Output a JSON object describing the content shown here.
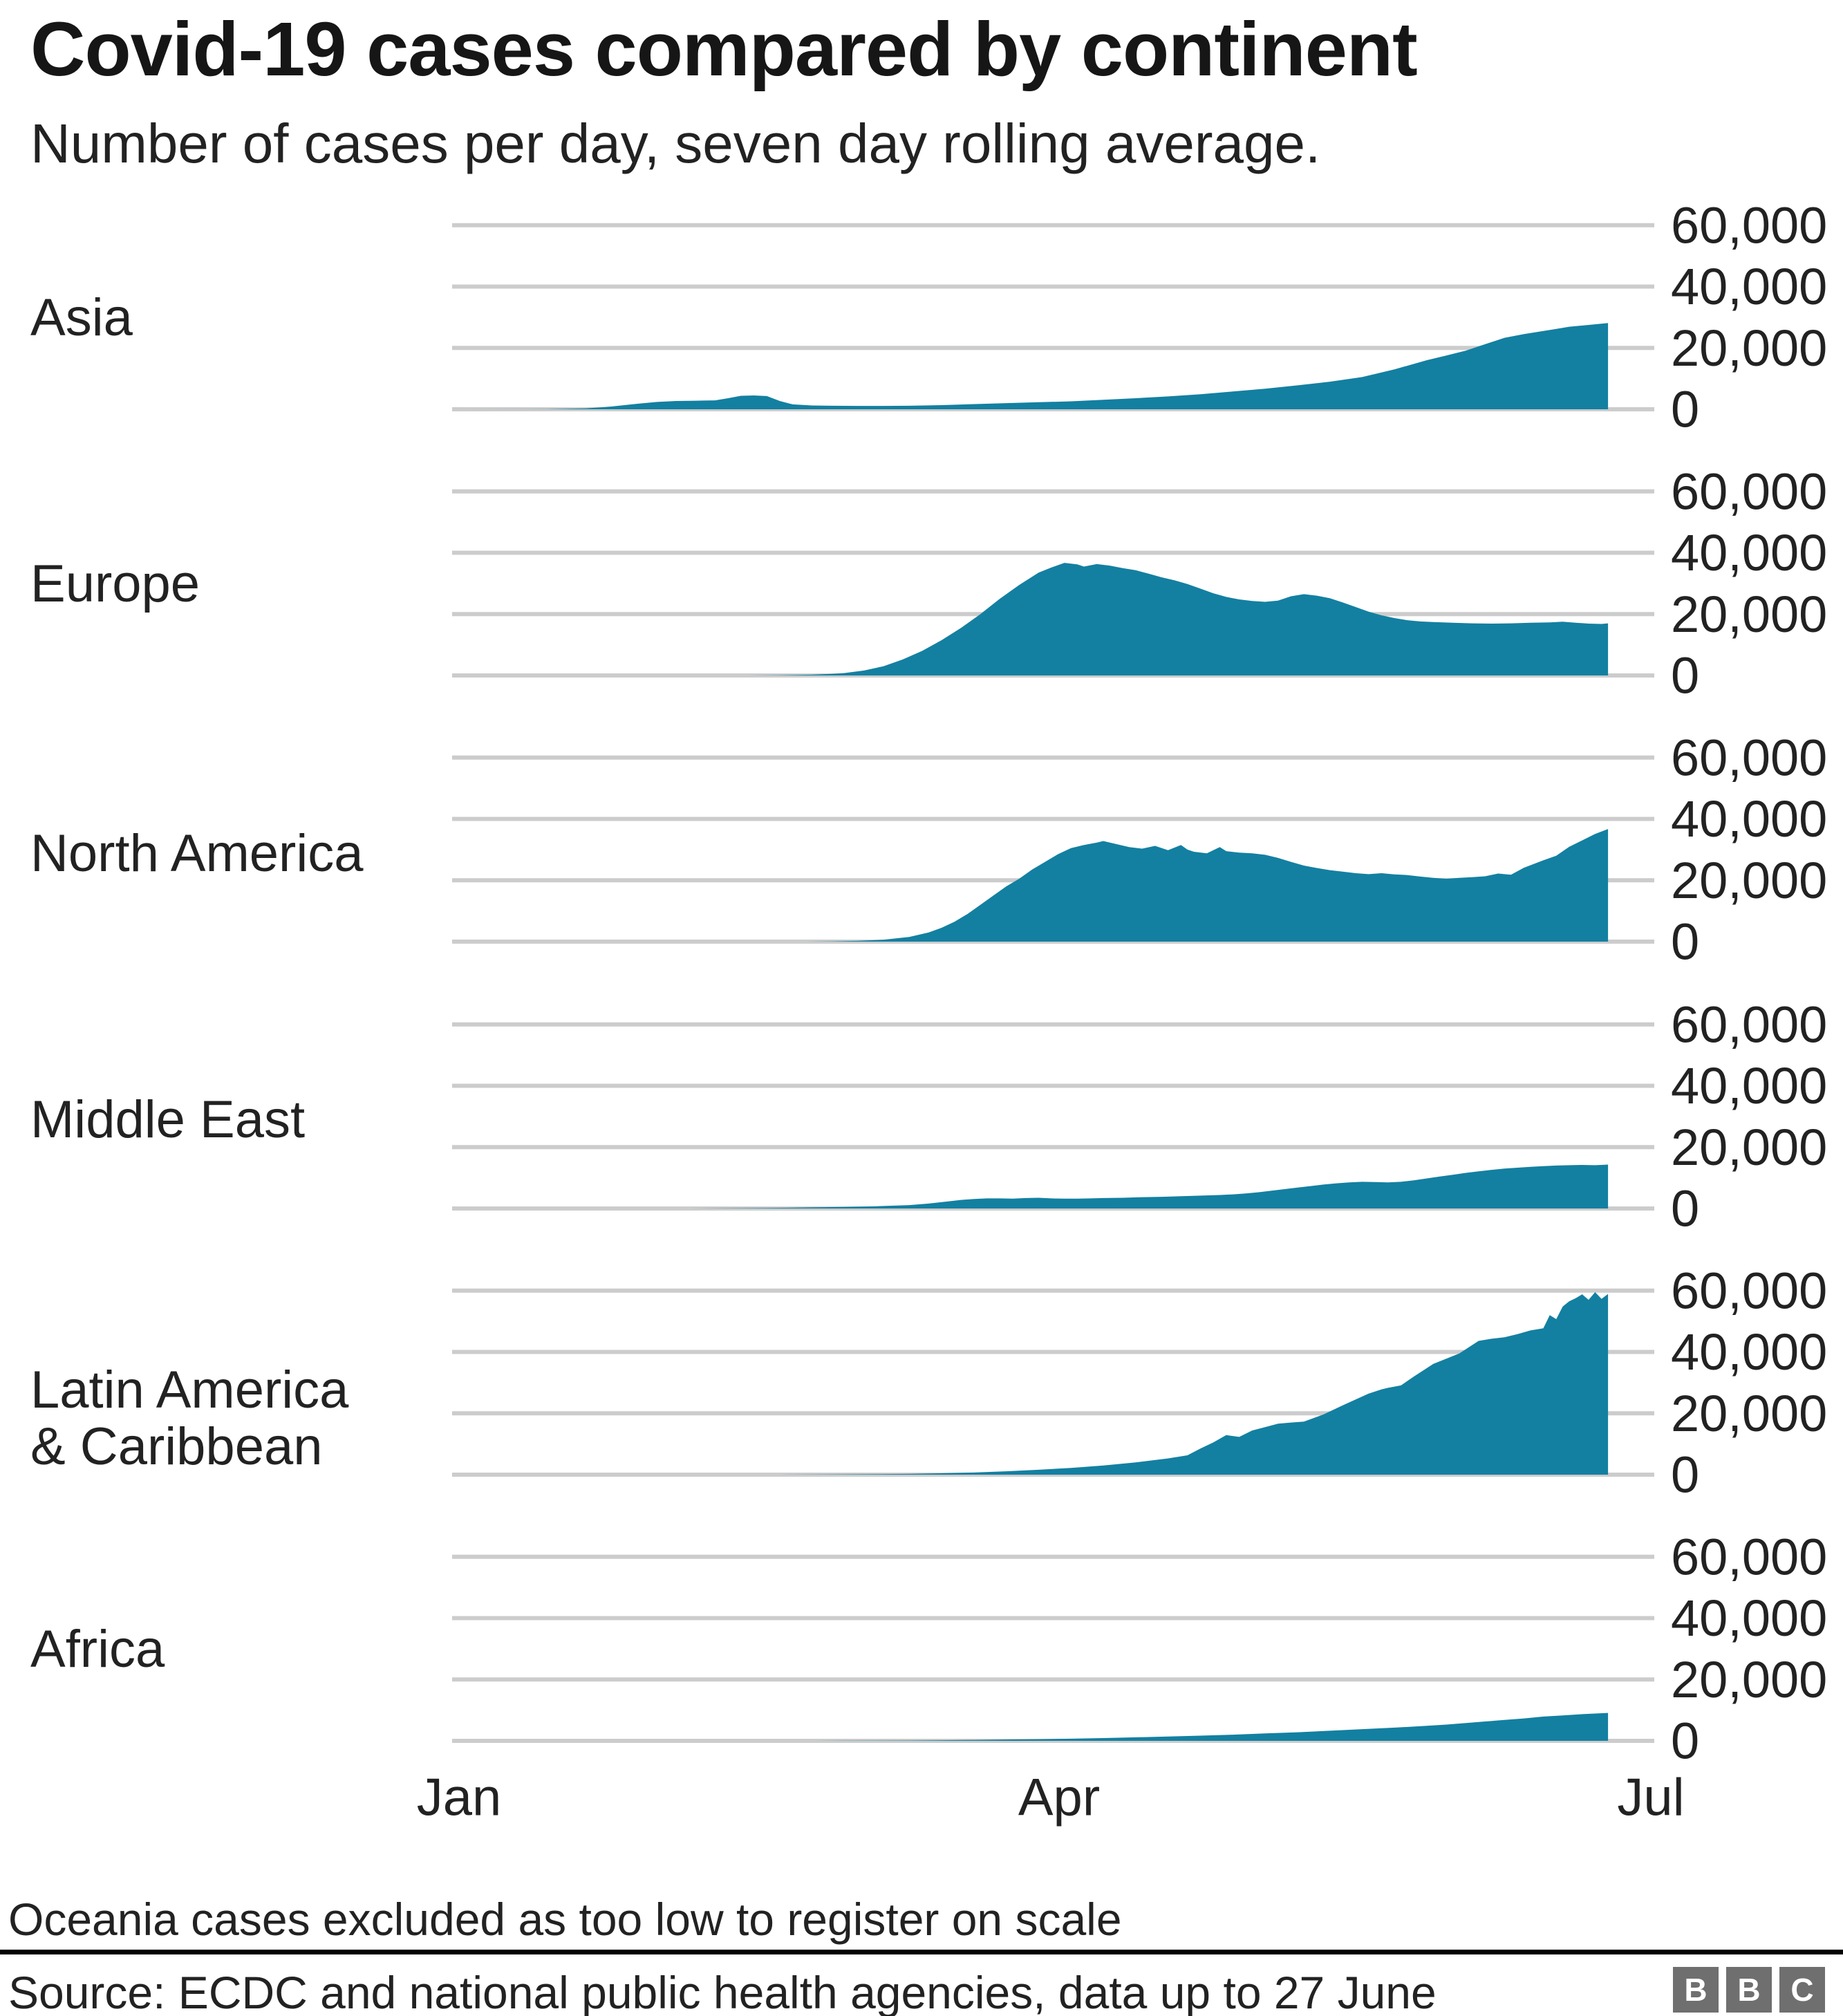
{
  "header": {
    "title": "Covid-19 cases compared by continent",
    "subtitle": "Number of cases per day, seven day rolling average."
  },
  "chart_data": {
    "type": "area",
    "title": "Covid-19 cases compared by continent",
    "subtitle": "Number of cases per day, seven day rolling average.",
    "accent_color": "#1380A1",
    "grid_color": "#CCCCCC",
    "legend_position": "left-row-labels",
    "x_axis": {
      "tick_labels": [
        "Jan",
        "Apr",
        "Jul"
      ],
      "note": "days since 1 Jan, data to 27 June"
    },
    "y_axis": {
      "tick_values": [
        0,
        20000,
        40000,
        60000
      ],
      "tick_labels": [
        "0",
        "20,000",
        "40,000",
        "60,000"
      ],
      "ylim": [
        0,
        60000
      ],
      "grid": true
    },
    "series": [
      {
        "name": "Asia",
        "label": "Asia",
        "points": [
          [
            0,
            0
          ],
          [
            14,
            50
          ],
          [
            20,
            300
          ],
          [
            24,
            900
          ],
          [
            28,
            1800
          ],
          [
            31,
            2400
          ],
          [
            34,
            2700
          ],
          [
            37,
            2800
          ],
          [
            40,
            2900
          ],
          [
            42,
            3600
          ],
          [
            44,
            4400
          ],
          [
            46,
            4500
          ],
          [
            48,
            4300
          ],
          [
            50,
            2700
          ],
          [
            52,
            1600
          ],
          [
            55,
            1250
          ],
          [
            58,
            1150
          ],
          [
            62,
            1100
          ],
          [
            66,
            1100
          ],
          [
            70,
            1150
          ],
          [
            75,
            1350
          ],
          [
            80,
            1700
          ],
          [
            85,
            2000
          ],
          [
            90,
            2300
          ],
          [
            95,
            2600
          ],
          [
            100,
            3100
          ],
          [
            105,
            3600
          ],
          [
            110,
            4200
          ],
          [
            115,
            4900
          ],
          [
            120,
            5800
          ],
          [
            125,
            6700
          ],
          [
            130,
            7800
          ],
          [
            135,
            9000
          ],
          [
            140,
            10500
          ],
          [
            145,
            13000
          ],
          [
            150,
            16000
          ],
          [
            153,
            17500
          ],
          [
            156,
            19100
          ],
          [
            159,
            21200
          ],
          [
            162,
            23300
          ],
          [
            165,
            24500
          ],
          [
            168,
            25500
          ],
          [
            170,
            26200
          ],
          [
            172,
            26900
          ],
          [
            175,
            27500
          ],
          [
            178,
            28100
          ]
        ]
      },
      {
        "name": "Europe",
        "label": "Europe",
        "points": [
          [
            0,
            0
          ],
          [
            45,
            0
          ],
          [
            50,
            100
          ],
          [
            55,
            250
          ],
          [
            58,
            500
          ],
          [
            60,
            800
          ],
          [
            63,
            1600
          ],
          [
            66,
            3000
          ],
          [
            69,
            5200
          ],
          [
            72,
            8000
          ],
          [
            75,
            11500
          ],
          [
            78,
            15500
          ],
          [
            81,
            20000
          ],
          [
            84,
            25000
          ],
          [
            87,
            29500
          ],
          [
            90,
            33500
          ],
          [
            92,
            35200
          ],
          [
            94,
            36700
          ],
          [
            96,
            36200
          ],
          [
            97,
            35500
          ],
          [
            99,
            36300
          ],
          [
            101,
            35800
          ],
          [
            103,
            35000
          ],
          [
            105,
            34300
          ],
          [
            107,
            33200
          ],
          [
            109,
            32000
          ],
          [
            111,
            31000
          ],
          [
            113,
            29800
          ],
          [
            115,
            28300
          ],
          [
            117,
            26800
          ],
          [
            119,
            25600
          ],
          [
            121,
            24800
          ],
          [
            123,
            24300
          ],
          [
            125,
            24000
          ],
          [
            127,
            24400
          ],
          [
            129,
            25800
          ],
          [
            131,
            26500
          ],
          [
            133,
            26000
          ],
          [
            135,
            25200
          ],
          [
            137,
            23800
          ],
          [
            139,
            22300
          ],
          [
            141,
            20800
          ],
          [
            143,
            19600
          ],
          [
            145,
            18700
          ],
          [
            147,
            18000
          ],
          [
            149,
            17600
          ],
          [
            151,
            17400
          ],
          [
            154,
            17200
          ],
          [
            157,
            17000
          ],
          [
            160,
            16900
          ],
          [
            163,
            17000
          ],
          [
            166,
            17200
          ],
          [
            169,
            17300
          ],
          [
            171,
            17500
          ],
          [
            173,
            17200
          ],
          [
            175,
            16900
          ],
          [
            177,
            16800
          ],
          [
            178,
            17000
          ]
        ]
      },
      {
        "name": "North America",
        "label": "North America",
        "points": [
          [
            0,
            0
          ],
          [
            54,
            0
          ],
          [
            58,
            100
          ],
          [
            62,
            250
          ],
          [
            66,
            600
          ],
          [
            70,
            1500
          ],
          [
            73,
            3000
          ],
          [
            75,
            4500
          ],
          [
            77,
            6500
          ],
          [
            79,
            9000
          ],
          [
            81,
            12000
          ],
          [
            83,
            15000
          ],
          [
            85,
            18000
          ],
          [
            87,
            20500
          ],
          [
            89,
            23500
          ],
          [
            91,
            26000
          ],
          [
            93,
            28500
          ],
          [
            95,
            30500
          ],
          [
            97,
            31500
          ],
          [
            99,
            32300
          ],
          [
            100,
            32800
          ],
          [
            102,
            31800
          ],
          [
            104,
            30800
          ],
          [
            106,
            30300
          ],
          [
            108,
            31200
          ],
          [
            110,
            29800
          ],
          [
            112,
            31500
          ],
          [
            113,
            30000
          ],
          [
            114,
            29300
          ],
          [
            116,
            28800
          ],
          [
            118,
            30800
          ],
          [
            119,
            29500
          ],
          [
            121,
            29000
          ],
          [
            123,
            28800
          ],
          [
            125,
            28300
          ],
          [
            127,
            27300
          ],
          [
            129,
            26000
          ],
          [
            131,
            24800
          ],
          [
            133,
            24000
          ],
          [
            135,
            23300
          ],
          [
            137,
            22800
          ],
          [
            139,
            22300
          ],
          [
            141,
            22000
          ],
          [
            143,
            22300
          ],
          [
            145,
            21900
          ],
          [
            147,
            21700
          ],
          [
            149,
            21200
          ],
          [
            151,
            20800
          ],
          [
            153,
            20500
          ],
          [
            155,
            20800
          ],
          [
            157,
            21000
          ],
          [
            159,
            21300
          ],
          [
            161,
            22200
          ],
          [
            163,
            21800
          ],
          [
            165,
            24100
          ],
          [
            168,
            26500
          ],
          [
            170,
            28000
          ],
          [
            172,
            30900
          ],
          [
            174,
            33000
          ],
          [
            176,
            35100
          ],
          [
            178,
            36700
          ]
        ]
      },
      {
        "name": "Middle East",
        "label": "Middle East",
        "points": [
          [
            0,
            0
          ],
          [
            36,
            0
          ],
          [
            40,
            50
          ],
          [
            48,
            150
          ],
          [
            55,
            350
          ],
          [
            60,
            500
          ],
          [
            65,
            750
          ],
          [
            70,
            1100
          ],
          [
            73,
            1600
          ],
          [
            76,
            2300
          ],
          [
            78,
            2800
          ],
          [
            80,
            3100
          ],
          [
            82,
            3300
          ],
          [
            84,
            3300
          ],
          [
            86,
            3200
          ],
          [
            88,
            3400
          ],
          [
            90,
            3500
          ],
          [
            92,
            3300
          ],
          [
            94,
            3200
          ],
          [
            96,
            3200
          ],
          [
            98,
            3300
          ],
          [
            100,
            3400
          ],
          [
            103,
            3500
          ],
          [
            106,
            3700
          ],
          [
            109,
            3800
          ],
          [
            112,
            4000
          ],
          [
            115,
            4200
          ],
          [
            118,
            4400
          ],
          [
            120,
            4600
          ],
          [
            122,
            4900
          ],
          [
            124,
            5300
          ],
          [
            126,
            5800
          ],
          [
            128,
            6300
          ],
          [
            130,
            6800
          ],
          [
            132,
            7300
          ],
          [
            134,
            7800
          ],
          [
            136,
            8200
          ],
          [
            138,
            8500
          ],
          [
            140,
            8700
          ],
          [
            142,
            8600
          ],
          [
            144,
            8500
          ],
          [
            146,
            8700
          ],
          [
            148,
            9200
          ],
          [
            150,
            9800
          ],
          [
            152,
            10400
          ],
          [
            154,
            11000
          ],
          [
            156,
            11600
          ],
          [
            158,
            12100
          ],
          [
            160,
            12600
          ],
          [
            162,
            13000
          ],
          [
            164,
            13300
          ],
          [
            166,
            13600
          ],
          [
            168,
            13800
          ],
          [
            170,
            14000
          ],
          [
            172,
            14100
          ],
          [
            174,
            14200
          ],
          [
            176,
            14100
          ],
          [
            178,
            14300
          ]
        ]
      },
      {
        "name": "Latin America & Caribbean",
        "label": "Latin America\n& Caribbean",
        "points": [
          [
            0,
            0
          ],
          [
            50,
            0
          ],
          [
            55,
            50
          ],
          [
            65,
            150
          ],
          [
            70,
            250
          ],
          [
            75,
            450
          ],
          [
            80,
            700
          ],
          [
            85,
            1100
          ],
          [
            90,
            1600
          ],
          [
            95,
            2200
          ],
          [
            100,
            3000
          ],
          [
            105,
            4000
          ],
          [
            110,
            5300
          ],
          [
            113,
            6300
          ],
          [
            115,
            8500
          ],
          [
            117,
            10500
          ],
          [
            119,
            12900
          ],
          [
            121,
            12300
          ],
          [
            123,
            14400
          ],
          [
            125,
            15500
          ],
          [
            127,
            16600
          ],
          [
            129,
            17000
          ],
          [
            131,
            17300
          ],
          [
            134,
            19600
          ],
          [
            137,
            22600
          ],
          [
            139,
            24500
          ],
          [
            141,
            26400
          ],
          [
            143,
            27800
          ],
          [
            144,
            28300
          ],
          [
            146,
            29100
          ],
          [
            148,
            32000
          ],
          [
            151,
            36100
          ],
          [
            153,
            37800
          ],
          [
            155,
            39500
          ],
          [
            158,
            43600
          ],
          [
            160,
            44300
          ],
          [
            162,
            44800
          ],
          [
            164,
            45800
          ],
          [
            166,
            47000
          ],
          [
            168,
            47700
          ],
          [
            169,
            52000
          ],
          [
            170,
            50700
          ],
          [
            171,
            54800
          ],
          [
            172,
            56500
          ],
          [
            173,
            57500
          ],
          [
            174,
            58800
          ],
          [
            175,
            57000
          ],
          [
            176,
            59500
          ],
          [
            177,
            57300
          ],
          [
            178,
            58900
          ]
        ]
      },
      {
        "name": "Africa",
        "label": "Africa",
        "points": [
          [
            0,
            0
          ],
          [
            55,
            0
          ],
          [
            60,
            50
          ],
          [
            70,
            120
          ],
          [
            75,
            200
          ],
          [
            80,
            300
          ],
          [
            85,
            420
          ],
          [
            90,
            550
          ],
          [
            95,
            700
          ],
          [
            100,
            900
          ],
          [
            105,
            1150
          ],
          [
            110,
            1400
          ],
          [
            115,
            1700
          ],
          [
            120,
            2000
          ],
          [
            125,
            2400
          ],
          [
            130,
            2800
          ],
          [
            135,
            3300
          ],
          [
            140,
            3800
          ],
          [
            145,
            4300
          ],
          [
            150,
            4900
          ],
          [
            153,
            5300
          ],
          [
            156,
            5800
          ],
          [
            159,
            6300
          ],
          [
            162,
            6800
          ],
          [
            165,
            7300
          ],
          [
            168,
            7900
          ],
          [
            171,
            8300
          ],
          [
            174,
            8700
          ],
          [
            176,
            8900
          ],
          [
            178,
            9100
          ]
        ]
      }
    ]
  },
  "footer": {
    "note": "Oceania cases excluded as too low to register on scale",
    "source": "Source: ECDC and national public health agencies, data up to 27 June",
    "logo_letters": [
      "B",
      "B",
      "C"
    ]
  }
}
